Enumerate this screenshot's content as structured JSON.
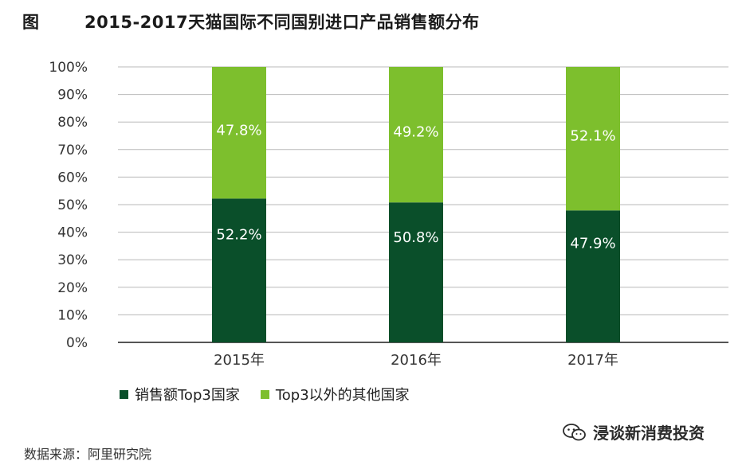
{
  "header": {
    "figure_label": "图",
    "title": "2015-2017天猫国际不同国别进口产品销售额分布"
  },
  "chart_data": {
    "type": "bar",
    "stacked": true,
    "categories": [
      "2015年",
      "2016年",
      "2017年"
    ],
    "series": [
      {
        "name": "销售额Top3国家",
        "values": [
          52.2,
          50.8,
          47.9
        ],
        "labels": [
          "52.2%",
          "50.8%",
          "47.9%"
        ],
        "color": "#0a4f2a"
      },
      {
        "name": "Top3以外的其他国家",
        "values": [
          47.8,
          49.2,
          52.1
        ],
        "labels": [
          "47.8%",
          "49.2%",
          "52.1%"
        ],
        "color": "#7dbf2d"
      }
    ],
    "y_ticks": [
      "0%",
      "10%",
      "20%",
      "30%",
      "40%",
      "50%",
      "60%",
      "70%",
      "80%",
      "90%",
      "100%"
    ],
    "ylim": [
      0,
      100
    ],
    "grid": true,
    "legend_position": "bottom-left"
  },
  "footer": {
    "source": "数据来源：阿里研究院"
  },
  "watermark": {
    "text": "浸谈新消费投资",
    "icon": "wechat-icon"
  }
}
